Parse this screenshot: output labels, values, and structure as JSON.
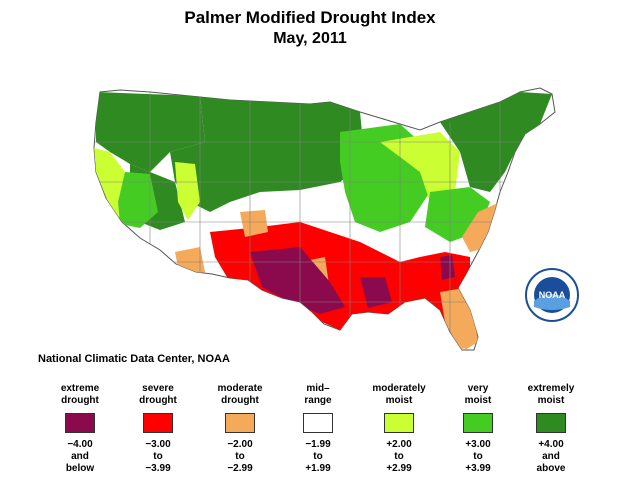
{
  "title": "Palmer Modified Drought Index",
  "subtitle": "May, 2011",
  "source": "National Climatic Data Center, NOAA",
  "logo_text": "NOAA",
  "colors": {
    "extreme_drought": "#8b0a4e",
    "severe_drought": "#ff0000",
    "moderate_drought": "#f5a95a",
    "mid_range": "#ffffff",
    "moderately_moist": "#ccff33",
    "very_moist": "#44cc22",
    "extremely_moist": "#2f8a22",
    "boundary": "#808080"
  },
  "legend": [
    {
      "label_line1": "extreme",
      "label_line2": "drought",
      "range_line1": "−4.00",
      "range_line2": "and",
      "range_line3": "below",
      "color": "#8b0a4e"
    },
    {
      "label_line1": "severe",
      "label_line2": "drought",
      "range_line1": "−3.00",
      "range_line2": "to",
      "range_line3": "−3.99",
      "color": "#ff0000"
    },
    {
      "label_line1": "moderate",
      "label_line2": "drought",
      "range_line1": "−2.00",
      "range_line2": "to",
      "range_line3": "−2.99",
      "color": "#f5a95a"
    },
    {
      "label_line1": "mid–",
      "label_line2": "range",
      "range_line1": "−1.99",
      "range_line2": "to",
      "range_line3": "+1.99",
      "color": "#ffffff"
    },
    {
      "label_line1": "moderately",
      "label_line2": "moist",
      "range_line1": "+2.00",
      "range_line2": "to",
      "range_line3": "+2.99",
      "color": "#ccff33"
    },
    {
      "label_line1": "very",
      "label_line2": "moist",
      "range_line1": "+3.00",
      "range_line2": "to",
      "range_line3": "+3.99",
      "color": "#44cc22"
    },
    {
      "label_line1": "extremely",
      "label_line2": "moist",
      "range_line1": "+4.00",
      "range_line2": "and",
      "range_line3": "above",
      "color": "#2f8a22"
    }
  ]
}
